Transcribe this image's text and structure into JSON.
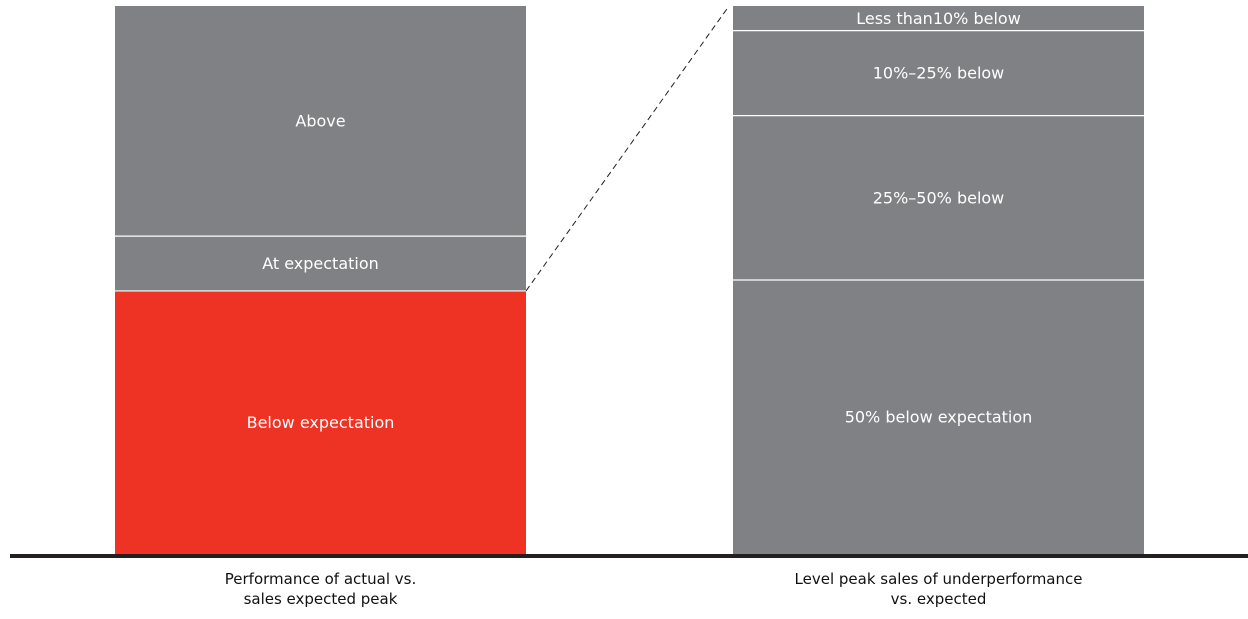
{
  "chart_data": {
    "type": "bar",
    "stacked": true,
    "categories": [
      [
        "Performance of actual vs.",
        "sales expected peak"
      ],
      [
        "Level peak sales of underperformance",
        "vs. expected"
      ]
    ],
    "bars": [
      {
        "segments": [
          {
            "label": "Below expectation",
            "value": 48,
            "color": "#EE3224"
          },
          {
            "label": "At expectation",
            "value": 10,
            "color": "#808184"
          },
          {
            "label": "Above",
            "value": 42,
            "color": "#808184"
          }
        ]
      },
      {
        "segments": [
          {
            "label": "50% below expectation",
            "value": 50,
            "color": "#808184"
          },
          {
            "label": "25%–50% below",
            "value": 30,
            "color": "#808184"
          },
          {
            "label": "10%–25% below",
            "value": 15.5,
            "color": "#808184"
          },
          {
            "label": "Less than10% below",
            "value": 4.5,
            "color": "#808184"
          }
        ]
      }
    ],
    "ylim": [
      0,
      100
    ],
    "grid": false,
    "legend": "none",
    "connector": {
      "from_bar": 0,
      "from_segment": 0,
      "to_bar": 1,
      "style": "dashed"
    }
  },
  "colors": {
    "highlight": "#EE3224",
    "neutral": "#808184",
    "baseline": "#231F20",
    "divider": "#ffffff",
    "connector": "#231F20"
  }
}
